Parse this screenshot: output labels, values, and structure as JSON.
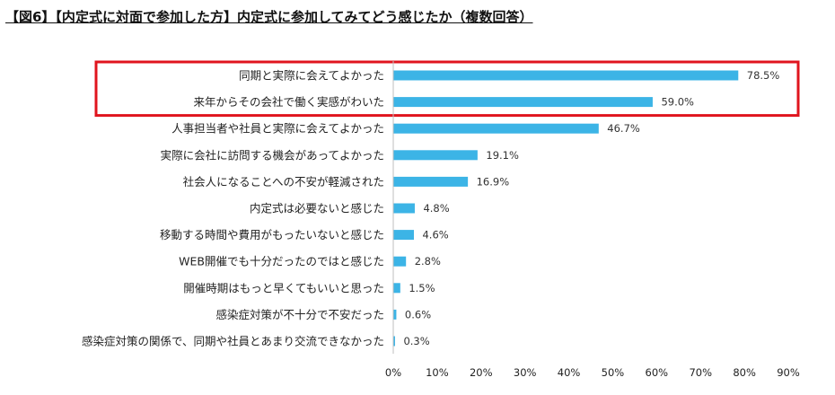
{
  "title": "【図6】【内定式に対面で参加した方】内定式に参加してみてどう感じたか（複数回答）",
  "chart_data": {
    "type": "bar",
    "orientation": "horizontal",
    "categories": [
      "同期と実際に会えてよかった",
      "来年からその会社で働く実感がわいた",
      "人事担当者や社員と実際に会えてよかった",
      "実際に会社に訪問する機会があってよかった",
      "社会人になることへの不安が軽減された",
      "内定式は必要ないと感じた",
      "移動する時間や費用がもったいないと感じた",
      "WEB開催でも十分だったのではと感じた",
      "開催時期はもっと早くてもいいと思った",
      "感染症対策が不十分で不安だった",
      "感染症対策の関係で、同期や社員とあまり交流できなかった"
    ],
    "values": [
      78.5,
      59.0,
      46.7,
      19.1,
      16.9,
      4.8,
      4.6,
      2.8,
      1.5,
      0.6,
      0.3
    ],
    "value_labels": [
      "78.5%",
      "59.0%",
      "46.7%",
      "19.1%",
      "16.9%",
      "4.8%",
      "4.6%",
      "2.8%",
      "1.5%",
      "0.6%",
      "0.3%"
    ],
    "xlim": [
      0,
      90
    ],
    "xticks": [
      0,
      10,
      20,
      30,
      40,
      50,
      60,
      70,
      80,
      90
    ],
    "xtick_labels": [
      "0%",
      "10%",
      "20%",
      "30%",
      "40%",
      "50%",
      "60%",
      "70%",
      "80%",
      "90%"
    ],
    "bar_color": "#3cb4e6",
    "highlight": {
      "categories_index": [
        0,
        1
      ],
      "border_color": "#e0141e"
    },
    "grid": false,
    "legend": "none"
  }
}
